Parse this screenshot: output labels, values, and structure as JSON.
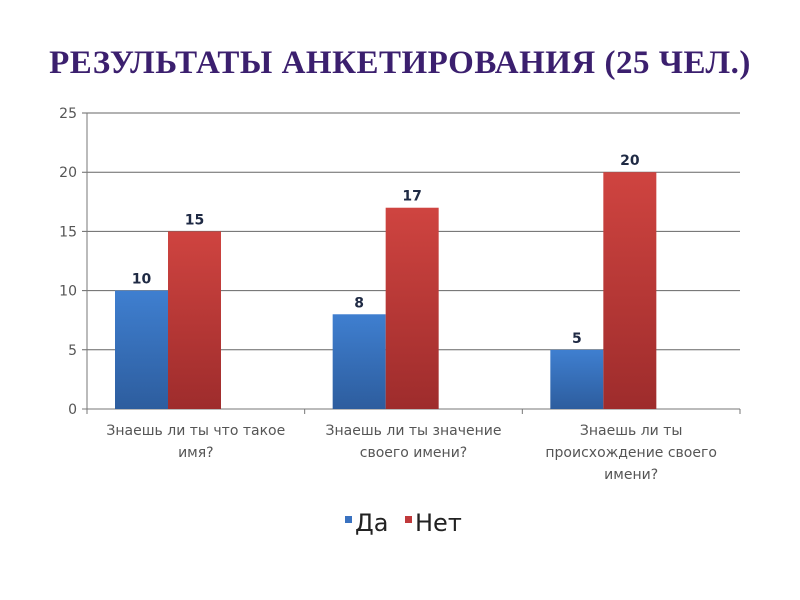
{
  "chart_data": {
    "type": "bar",
    "title": "РЕЗУЛЬТАТЫ АНКЕТИРОВАНИЯ (25 ЧЕЛ.)",
    "categories": [
      [
        "Знаешь ли ты что такое",
        "имя?"
      ],
      [
        "Знаешь ли ты значение",
        "своего имени?"
      ],
      [
        "Знаешь ли ты",
        "происхождение своего",
        "имени?"
      ]
    ],
    "series": [
      {
        "name": "Да",
        "values": [
          10,
          8,
          5
        ],
        "color": "#3a72c0"
      },
      {
        "name": "Нет",
        "values": [
          15,
          17,
          20
        ],
        "color": "#c0393b"
      }
    ],
    "yticks": [
      "0",
      "5",
      "10",
      "15",
      "20",
      "25"
    ],
    "ylim": [
      0,
      25
    ],
    "grid": true,
    "legend": "bottom",
    "data_labels": true
  }
}
